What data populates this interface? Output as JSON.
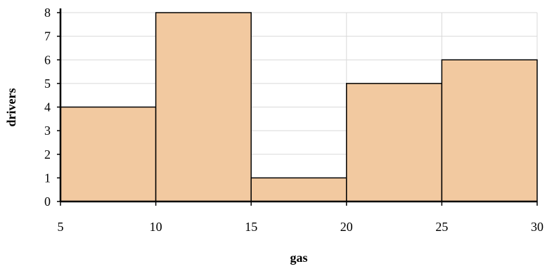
{
  "chart_data": {
    "type": "bar",
    "subtype": "histogram",
    "title": "",
    "xlabel": "gas",
    "ylabel": "drivers",
    "bins": [
      {
        "x0": 5,
        "x1": 10,
        "value": 4
      },
      {
        "x0": 10,
        "x1": 15,
        "value": 8
      },
      {
        "x0": 15,
        "x1": 20,
        "value": 1
      },
      {
        "x0": 20,
        "x1": 25,
        "value": 5
      },
      {
        "x0": 25,
        "x1": 30,
        "value": 6
      }
    ],
    "xlim": [
      5,
      30
    ],
    "ylim": [
      0,
      8
    ],
    "xticks": [
      5,
      10,
      15,
      20,
      25,
      30
    ],
    "yticks": [
      0,
      1,
      2,
      3,
      4,
      5,
      6,
      7,
      8
    ],
    "grid": true,
    "legend": "none",
    "colors": {
      "bar_fill": "#f2c9a0",
      "bar_stroke": "#000000",
      "grid": "#d9d9d9",
      "axis": "#000000"
    }
  }
}
